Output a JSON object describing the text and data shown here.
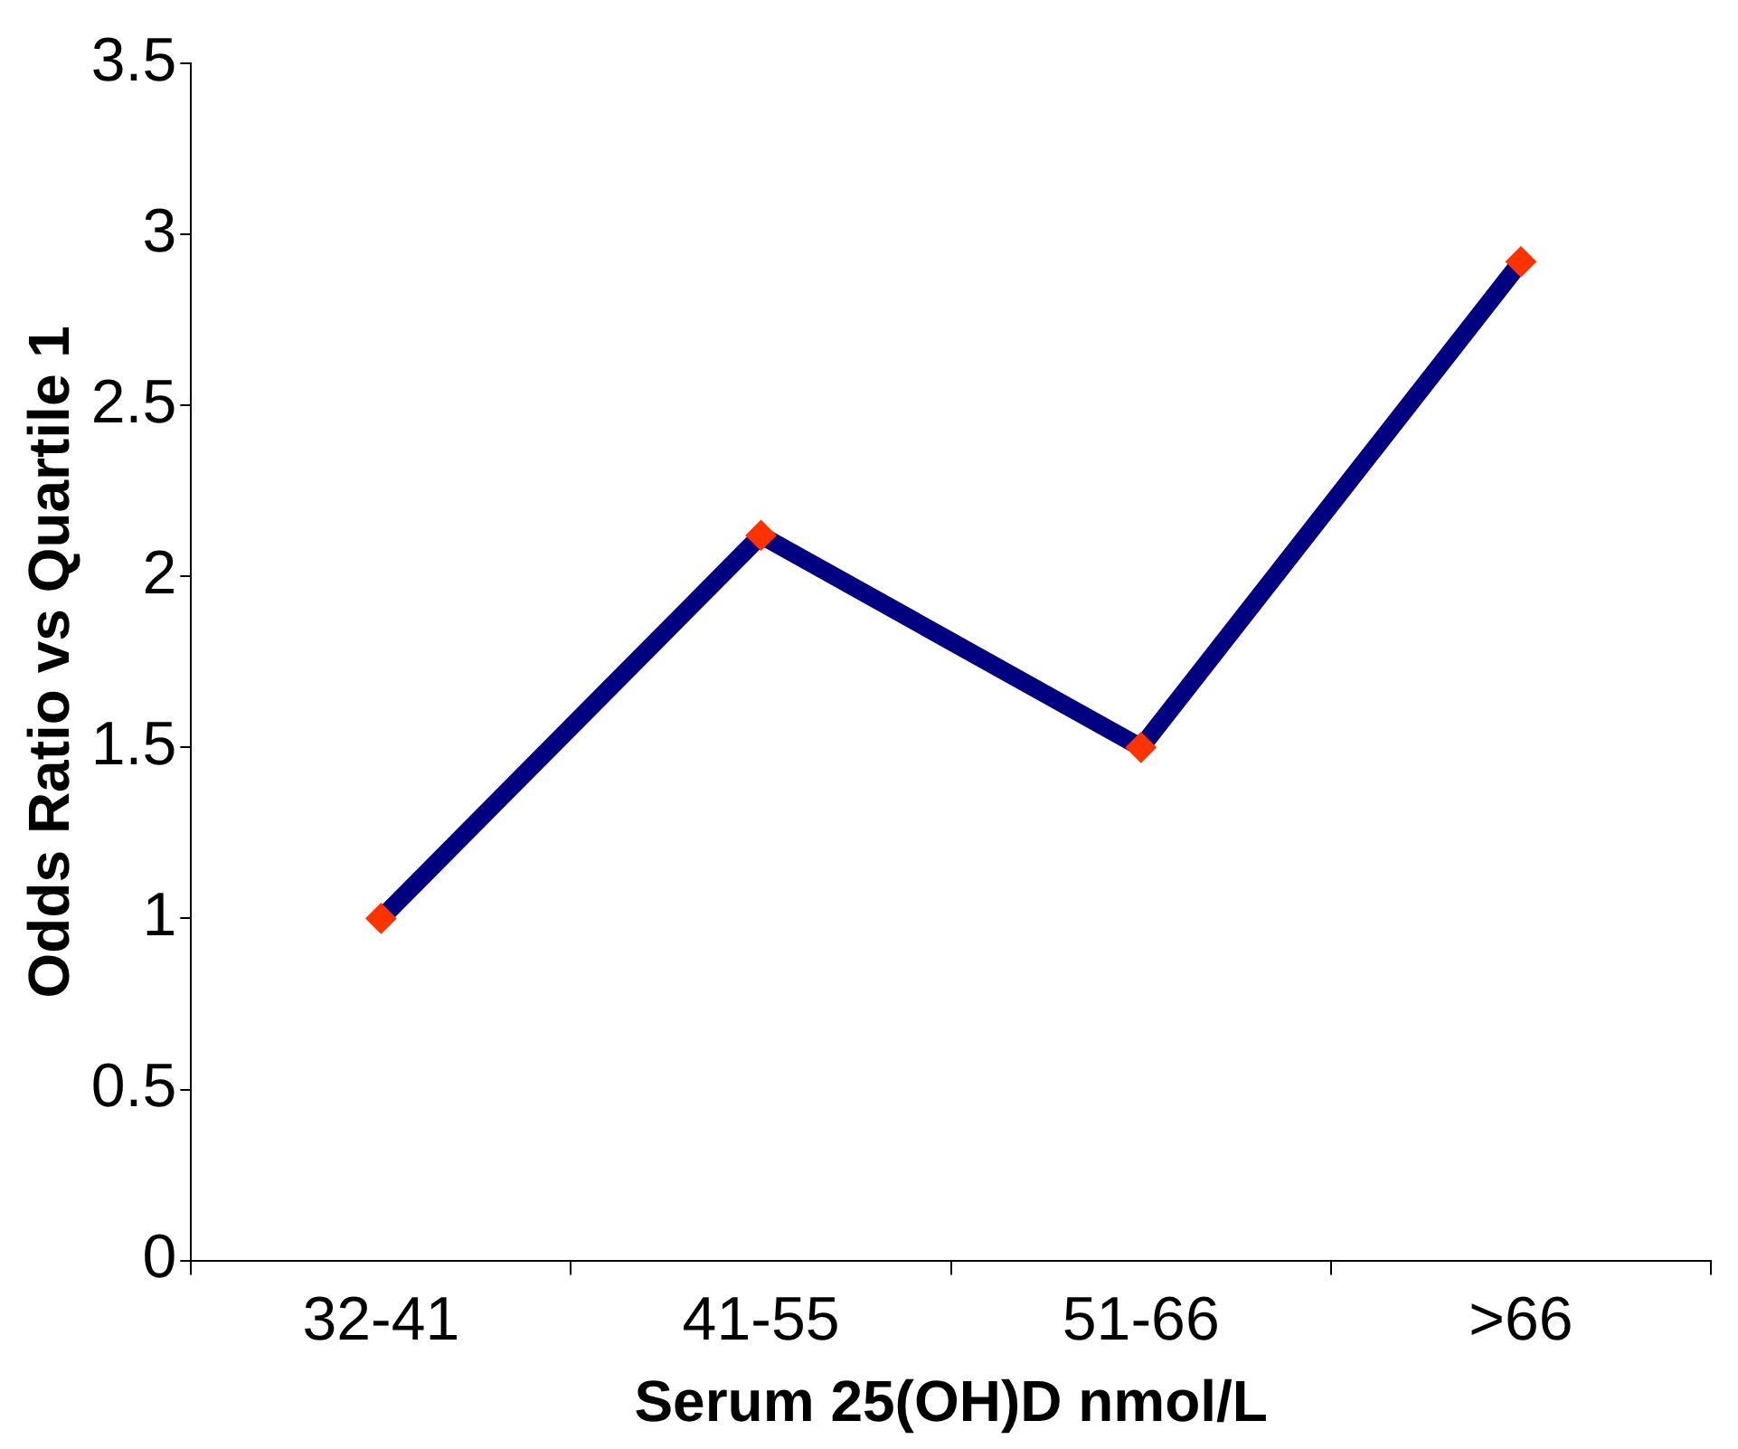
{
  "chart_data": {
    "type": "line",
    "xlabel": "Serum 25(OH)D nmol/L",
    "ylabel": "Odds Ratio vs Quartile 1",
    "categories": [
      "32-41",
      "41-55",
      "51-66",
      ">66"
    ],
    "series": [
      {
        "color": "#000080",
        "marker": "none",
        "values": [
          1.0,
          2.12,
          1.5,
          2.92
        ]
      },
      {
        "type": "scatter",
        "marker": "diamond",
        "color": "#ff3300",
        "x": [
          "32-41",
          "41-55",
          "51-66",
          ">66"
        ],
        "values": [
          1.0,
          2.12,
          1.5,
          2.92
        ]
      }
    ],
    "ylim": [
      0,
      3.5
    ],
    "yticks": [
      0,
      0.5,
      1,
      1.5,
      2,
      2.5,
      3,
      3.5
    ],
    "grid": false,
    "legend": false
  }
}
